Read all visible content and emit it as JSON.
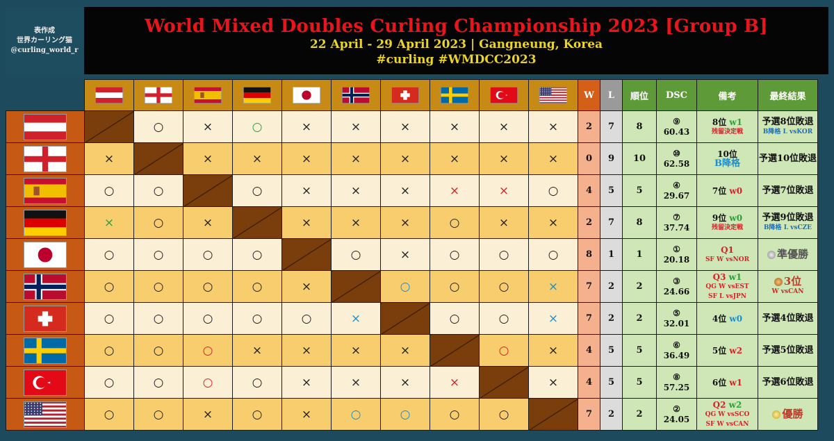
{
  "credit": {
    "line1": "表作成",
    "line2": "世界カーリング猫",
    "line3": "@curling_world_r"
  },
  "banner": {
    "title": "World Mixed Doubles Curling Championship 2023 [Group B]",
    "subtitle": "22 April - 29 April 2023 | Gangneung, Korea",
    "hashtags": "#curling #WMDCC2023"
  },
  "headers": {
    "w": "W",
    "l": "L",
    "rank": "順位",
    "dsc": "DSC",
    "note": "備考",
    "final": "最終結果"
  },
  "flags": [
    "austria-flag-icon",
    "england-flag-icon",
    "spain-flag-icon",
    "germany-flag-icon",
    "japan-flag-icon",
    "norway-flag-icon",
    "switzerland-flag-icon",
    "sweden-flag-icon",
    "turkey-flag-icon",
    "usa-flag-icon"
  ],
  "symbols": {
    "win": "○",
    "loss": "×"
  },
  "rows": [
    {
      "flag": "austria",
      "results": [
        "D",
        "○",
        "×",
        "○g",
        "×",
        "×",
        "×",
        "×",
        "×",
        "×"
      ],
      "w": "2",
      "l": "7",
      "rank": "8",
      "dsc_seed": "⑨",
      "dsc": "60.43",
      "note": {
        "a": "8位",
        "a2": "w1",
        "a2c": "green",
        "b": "残留決定戦",
        "bc": "red"
      },
      "final": {
        "a": "予選8位敗退",
        "b": "B降格 L vsKOR",
        "bc": "blue"
      }
    },
    {
      "flag": "england",
      "results": [
        "×",
        "D",
        "×",
        "×",
        "×",
        "×",
        "×",
        "×",
        "×",
        "×"
      ],
      "w": "0",
      "l": "9",
      "rank": "10",
      "dsc_seed": "⑩",
      "dsc": "62.58",
      "note": {
        "a": "10位",
        "a2": "",
        "a2c": "",
        "b": "B降格",
        "bc": "bluebig"
      },
      "final": {
        "a": "予選10位敗退",
        "b": "",
        "bc": ""
      }
    },
    {
      "flag": "spain",
      "results": [
        "○",
        "○",
        "D",
        "○",
        "×",
        "×",
        "×",
        "×r",
        "×r",
        "○"
      ],
      "w": "4",
      "l": "5",
      "rank": "5",
      "dsc_seed": "④",
      "dsc": "29.67",
      "note": {
        "a": "7位",
        "a2": "w0",
        "a2c": "red",
        "b": "",
        "bc": ""
      },
      "final": {
        "a": "予選7位敗退",
        "b": "",
        "bc": ""
      }
    },
    {
      "flag": "germany",
      "results": [
        "×g",
        "○",
        "×",
        "D",
        "×",
        "×",
        "×",
        "○",
        "×",
        "×"
      ],
      "w": "2",
      "l": "7",
      "rank": "8",
      "dsc_seed": "⑦",
      "dsc": "37.74",
      "note": {
        "a": "9位",
        "a2": "w0",
        "a2c": "green",
        "b": "残留決定戦",
        "bc": "red"
      },
      "final": {
        "a": "予選9位敗退",
        "b": "B降格 L vsCZE",
        "bc": "blue"
      }
    },
    {
      "flag": "japan",
      "results": [
        "○",
        "○",
        "○",
        "○",
        "D",
        "○",
        "×",
        "○",
        "○",
        "○"
      ],
      "w": "8",
      "l": "1",
      "rank": "1",
      "dsc_seed": "①",
      "dsc": "20.18",
      "note": {
        "a": "Q1",
        "a2": "",
        "a2c": "",
        "b": "SF W vsNOR",
        "bc": "red",
        "ac": "red"
      },
      "final": {
        "a": "準優勝",
        "b": "",
        "bc": "",
        "medal": "silver"
      }
    },
    {
      "flag": "norway",
      "results": [
        "○",
        "○",
        "○",
        "○",
        "×",
        "D",
        "○b",
        "○",
        "○",
        "×b"
      ],
      "w": "7",
      "l": "2",
      "rank": "2",
      "dsc_seed": "③",
      "dsc": "24.66",
      "note": {
        "a": "Q3",
        "a2": "w1",
        "a2c": "green",
        "b": "QG W vsEST",
        "b2": "SF L vsJPN",
        "bc": "red",
        "ac": "red"
      },
      "final": {
        "a": "3位",
        "b": "W vsCAN",
        "bc": "red",
        "medal": "bronze"
      }
    },
    {
      "flag": "switzerland",
      "results": [
        "○",
        "○",
        "○",
        "○",
        "○",
        "×b",
        "D",
        "○",
        "○",
        "×b"
      ],
      "w": "7",
      "l": "2",
      "rank": "2",
      "dsc_seed": "⑤",
      "dsc": "32.01",
      "note": {
        "a": "4位",
        "a2": "w0",
        "a2c": "blue",
        "b": "",
        "bc": ""
      },
      "final": {
        "a": "予選4位敗退",
        "b": "",
        "bc": ""
      }
    },
    {
      "flag": "sweden",
      "results": [
        "○",
        "○",
        "○r",
        "×",
        "×",
        "×",
        "×",
        "D",
        "○r",
        "×"
      ],
      "w": "4",
      "l": "5",
      "rank": "5",
      "dsc_seed": "⑥",
      "dsc": "36.49",
      "note": {
        "a": "5位",
        "a2": "w2",
        "a2c": "red",
        "b": "",
        "bc": ""
      },
      "final": {
        "a": "予選5位敗退",
        "b": "",
        "bc": ""
      }
    },
    {
      "flag": "turkey",
      "results": [
        "○",
        "○",
        "○r",
        "○",
        "×",
        "×",
        "×",
        "×r",
        "D",
        "×"
      ],
      "w": "4",
      "l": "5",
      "rank": "5",
      "dsc_seed": "⑧",
      "dsc": "57.25",
      "note": {
        "a": "6位",
        "a2": "w1",
        "a2c": "red",
        "b": "",
        "bc": ""
      },
      "final": {
        "a": "予選6位敗退",
        "b": "",
        "bc": ""
      }
    },
    {
      "flag": "usa",
      "results": [
        "○",
        "○",
        "×",
        "○",
        "×",
        "○b",
        "○b",
        "○",
        "○",
        "D"
      ],
      "w": "7",
      "l": "2",
      "rank": "2",
      "dsc_seed": "②",
      "dsc": "24.05",
      "note": {
        "a": "Q2",
        "a2": "w2",
        "a2c": "green",
        "b": "QG W vsSCO",
        "b2": "SF W vsCAN",
        "bc": "red",
        "ac": "red"
      },
      "final": {
        "a": "優勝",
        "b": "",
        "bc": "",
        "medal": "gold"
      }
    }
  ]
}
